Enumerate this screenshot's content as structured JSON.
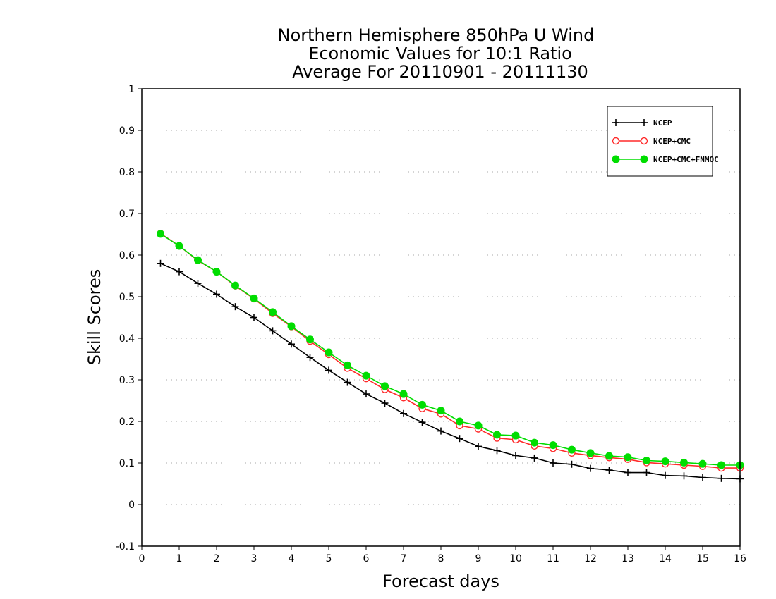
{
  "chart_data": {
    "type": "line",
    "title_lines": [
      "Northern Hemisphere 850hPa U Wind",
      "Economic Values for 10:1 Ratio",
      "Average For 20110901 - 20111130"
    ],
    "xlabel": "Forecast days",
    "ylabel": "Skill Scores",
    "xlim": [
      0,
      16
    ],
    "ylim": [
      -0.1,
      1
    ],
    "x_ticks": [
      "0",
      "1",
      "2",
      "3",
      "4",
      "5",
      "6",
      "7",
      "8",
      "9",
      "10",
      "11",
      "12",
      "13",
      "14",
      "15",
      "16"
    ],
    "y_ticks": [
      "-0.1",
      "0",
      "0.1",
      "0.2",
      "0.3",
      "0.4",
      "0.5",
      "0.6",
      "0.7",
      "0.8",
      "0.9",
      "1"
    ],
    "grid": true,
    "legend_position": "top-right",
    "x": [
      0.5,
      1,
      1.5,
      2,
      2.5,
      3,
      3.5,
      4,
      4.5,
      5,
      5.5,
      6,
      6.5,
      7,
      7.5,
      8,
      8.5,
      9,
      9.5,
      10,
      10.5,
      11,
      11.5,
      12,
      12.5,
      13,
      13.5,
      14,
      14.5,
      15,
      15.5,
      16
    ],
    "series": [
      {
        "name": "NCEP",
        "color": "#000000",
        "marker": "plus",
        "values": [
          0.58,
          0.56,
          0.532,
          0.506,
          0.476,
          0.45,
          0.418,
          0.386,
          0.354,
          0.323,
          0.294,
          0.266,
          0.244,
          0.219,
          0.198,
          0.177,
          0.159,
          0.14,
          0.13,
          0.118,
          0.112,
          0.1,
          0.097,
          0.087,
          0.083,
          0.077,
          0.077,
          0.07,
          0.069,
          0.065,
          0.063,
          0.062
        ]
      },
      {
        "name": "NCEP+CMC",
        "color": "#ff2a2a",
        "marker": "open-circle",
        "values": [
          0.652,
          0.622,
          0.587,
          0.56,
          0.526,
          0.495,
          0.46,
          0.428,
          0.393,
          0.361,
          0.328,
          0.303,
          0.277,
          0.257,
          0.231,
          0.218,
          0.19,
          0.182,
          0.16,
          0.156,
          0.141,
          0.135,
          0.124,
          0.118,
          0.113,
          0.109,
          0.101,
          0.098,
          0.095,
          0.092,
          0.088,
          0.088
        ]
      },
      {
        "name": "NCEP+CMC+FNMOC",
        "color": "#00dd00",
        "marker": "filled-circle",
        "values": [
          0.651,
          0.622,
          0.588,
          0.56,
          0.527,
          0.496,
          0.463,
          0.429,
          0.397,
          0.366,
          0.335,
          0.31,
          0.285,
          0.266,
          0.24,
          0.226,
          0.2,
          0.19,
          0.168,
          0.166,
          0.149,
          0.143,
          0.132,
          0.124,
          0.117,
          0.114,
          0.106,
          0.104,
          0.101,
          0.098,
          0.095,
          0.095
        ]
      }
    ]
  }
}
